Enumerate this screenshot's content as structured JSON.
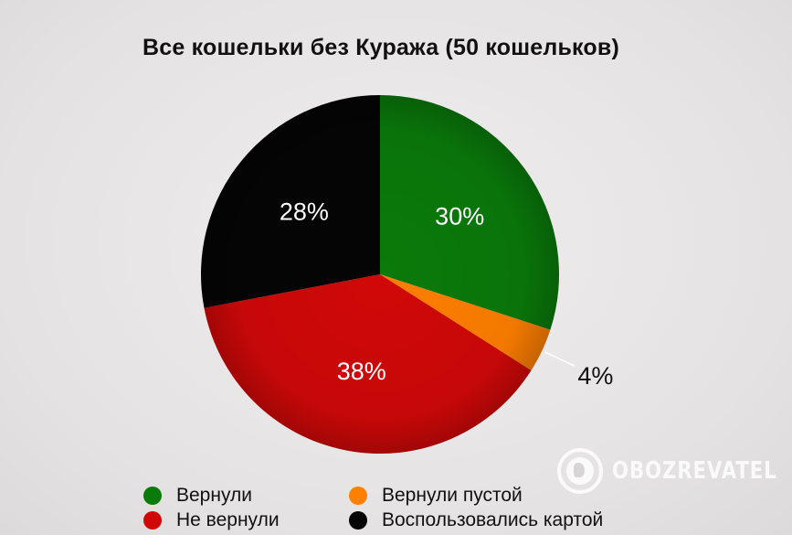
{
  "chart_data": {
    "type": "pie",
    "title": "Все кошельки без Куража (50 кошельков)",
    "slices": [
      {
        "label": "Вернули",
        "value": 30,
        "display": "30%",
        "color": "#0a7a0a"
      },
      {
        "label": "Вернули пустой",
        "value": 4,
        "display": "4%",
        "color": "#ff7f00"
      },
      {
        "label": "Не вернули",
        "value": 38,
        "display": "38%",
        "color": "#d10808"
      },
      {
        "label": "Воспользовались картой",
        "value": 28,
        "display": "28%",
        "color": "#050505"
      }
    ],
    "legend_position": "bottom"
  },
  "watermark": {
    "text": "OBOZREVATEL",
    "icon": "globe-icon"
  }
}
